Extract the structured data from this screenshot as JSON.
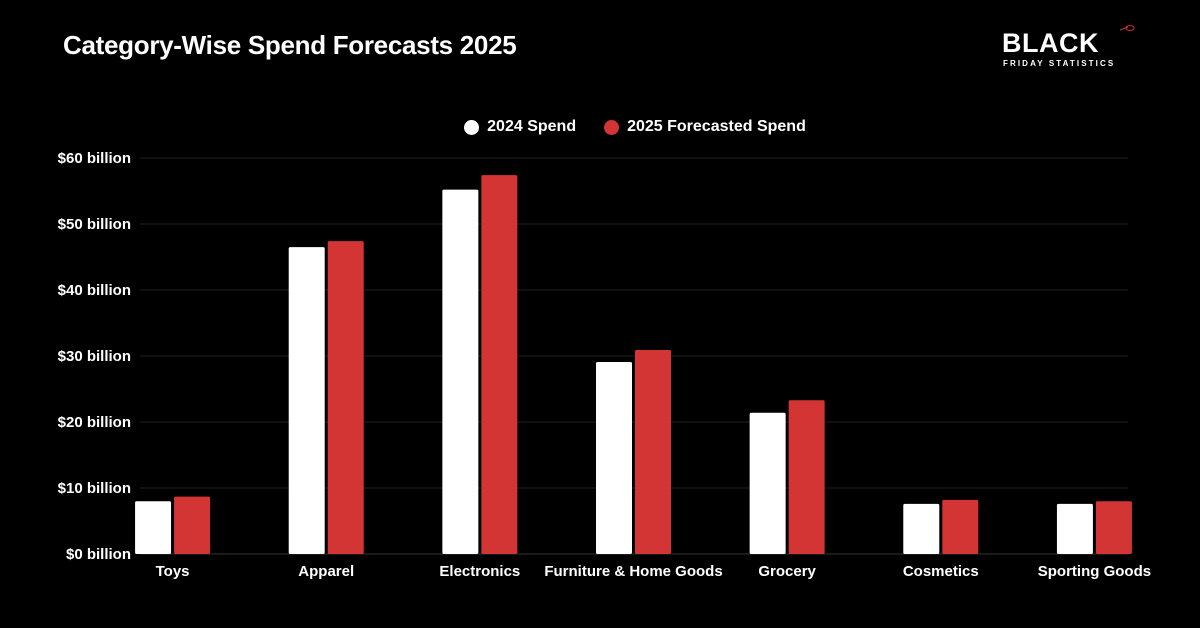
{
  "logo": {
    "main": "BLACK",
    "sub": "FRIDAY STATISTICS"
  },
  "chart_data": {
    "type": "bar",
    "title": "Category-Wise Spend Forecasts 2025",
    "xlabel": "",
    "ylabel": "",
    "categories": [
      "Toys",
      "Apparel",
      "Electronics",
      "Furniture & Home Goods",
      "Grocery",
      "Cosmetics",
      "Sporting Goods"
    ],
    "series": [
      {
        "name": "2024 Spend",
        "color": "#ffffff",
        "values": [
          8.0,
          46.5,
          55.2,
          29.1,
          21.4,
          7.6,
          7.6
        ]
      },
      {
        "name": "2025 Forecasted Spend",
        "color": "#d33535",
        "values": [
          8.7,
          47.4,
          57.4,
          30.9,
          23.3,
          8.2,
          8.0
        ]
      }
    ],
    "ylim": [
      0,
      60
    ],
    "yticks": [
      0,
      10,
      20,
      30,
      40,
      50,
      60
    ],
    "ytick_labels": [
      "$0 billion",
      "$10 billion",
      "$20 billion",
      "$30 billion",
      "$40 billion",
      "$50 billion",
      "$60 billion"
    ],
    "grid": true,
    "legend_position": "top-center"
  }
}
